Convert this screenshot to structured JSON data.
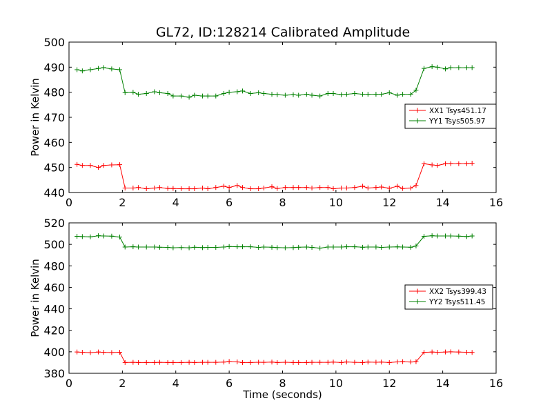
{
  "figure": {
    "title": "GL72, ID:128214 Calibrated Amplitude"
  },
  "chart_data": [
    {
      "type": "line",
      "title": "GL72, ID:128214 Calibrated Amplitude",
      "xlabel": "",
      "ylabel": "Power in Kelvin",
      "xlim": [
        0,
        16
      ],
      "ylim": [
        440,
        500
      ],
      "xticks": [
        0,
        2,
        4,
        6,
        8,
        10,
        12,
        14,
        16
      ],
      "yticks": [
        440,
        450,
        460,
        470,
        480,
        490,
        500
      ],
      "grid": false,
      "legend_position": "right",
      "x": [
        0.3,
        0.5,
        0.8,
        1.1,
        1.3,
        1.6,
        1.9,
        2.1,
        2.4,
        2.6,
        2.9,
        3.2,
        3.4,
        3.7,
        3.9,
        4.2,
        4.5,
        4.7,
        5.0,
        5.2,
        5.5,
        5.8,
        6.0,
        6.3,
        6.5,
        6.8,
        7.1,
        7.3,
        7.6,
        7.8,
        8.1,
        8.4,
        8.6,
        8.9,
        9.1,
        9.4,
        9.7,
        9.9,
        10.2,
        10.4,
        10.7,
        11.0,
        11.2,
        11.5,
        11.7,
        12.0,
        12.3,
        12.5,
        12.8,
        13.0,
        13.3,
        13.6,
        13.8,
        14.1,
        14.3,
        14.6,
        14.9,
        15.1
      ],
      "series": [
        {
          "name": "XX1 Tsys451.17",
          "color": "#ff0000",
          "values": [
            451.2,
            450.8,
            450.8,
            450.0,
            450.8,
            451.0,
            451.1,
            441.8,
            441.8,
            442.0,
            441.5,
            441.8,
            442.0,
            441.6,
            441.6,
            441.5,
            441.5,
            441.5,
            441.8,
            441.5,
            442.0,
            442.5,
            442.0,
            442.8,
            442.0,
            441.5,
            441.5,
            441.8,
            442.3,
            441.6,
            442.0,
            442.0,
            442.0,
            442.0,
            441.8,
            442.0,
            442.0,
            441.5,
            441.8,
            441.8,
            442.0,
            442.5,
            441.8,
            442.0,
            442.2,
            441.7,
            442.5,
            441.6,
            441.8,
            442.8,
            451.5,
            451.0,
            450.8,
            451.5,
            451.5,
            451.5,
            451.5,
            451.7
          ]
        },
        {
          "name": "YY1 Tsys505.97",
          "color": "#008000",
          "values": [
            489.0,
            488.5,
            489.0,
            489.5,
            489.8,
            489.3,
            489.0,
            479.8,
            480.0,
            479.2,
            479.5,
            480.2,
            479.8,
            479.5,
            478.5,
            478.5,
            478.0,
            478.8,
            478.5,
            478.5,
            478.5,
            479.5,
            480.0,
            480.2,
            480.5,
            479.5,
            479.8,
            479.5,
            479.2,
            479.0,
            478.8,
            479.0,
            478.8,
            479.2,
            478.8,
            478.5,
            479.5,
            479.5,
            479.0,
            479.2,
            479.5,
            479.2,
            479.2,
            479.2,
            479.2,
            479.8,
            478.8,
            479.2,
            479.2,
            480.8,
            489.5,
            490.2,
            490.0,
            489.3,
            489.8,
            489.8,
            489.8,
            489.8
          ]
        }
      ]
    },
    {
      "type": "line",
      "title": "",
      "xlabel": "Time (seconds)",
      "ylabel": "Power in Kelvin",
      "xlim": [
        0,
        16
      ],
      "ylim": [
        380,
        520
      ],
      "xticks": [
        0,
        2,
        4,
        6,
        8,
        10,
        12,
        14,
        16
      ],
      "yticks": [
        380,
        400,
        420,
        440,
        460,
        480,
        500,
        520
      ],
      "grid": false,
      "legend_position": "right",
      "x": [
        0.3,
        0.5,
        0.8,
        1.1,
        1.3,
        1.6,
        1.9,
        2.1,
        2.4,
        2.6,
        2.9,
        3.2,
        3.4,
        3.7,
        3.9,
        4.2,
        4.5,
        4.7,
        5.0,
        5.2,
        5.5,
        5.8,
        6.0,
        6.3,
        6.5,
        6.8,
        7.1,
        7.3,
        7.6,
        7.8,
        8.1,
        8.4,
        8.6,
        8.9,
        9.1,
        9.4,
        9.7,
        9.9,
        10.2,
        10.4,
        10.7,
        11.0,
        11.2,
        11.5,
        11.7,
        12.0,
        12.3,
        12.5,
        12.8,
        13.0,
        13.3,
        13.6,
        13.8,
        14.1,
        14.3,
        14.6,
        14.9,
        15.1
      ],
      "series": [
        {
          "name": "XX2 Tsys399.43",
          "color": "#ff0000",
          "values": [
            399.8,
            399.6,
            399.2,
            399.8,
            399.5,
            399.3,
            399.6,
            390.0,
            390.2,
            390.0,
            390.0,
            390.0,
            390.2,
            390.0,
            390.0,
            390.0,
            390.2,
            390.0,
            390.2,
            390.2,
            390.2,
            390.4,
            391.0,
            390.6,
            390.0,
            390.0,
            390.3,
            390.2,
            390.4,
            390.0,
            390.3,
            390.0,
            390.0,
            390.0,
            390.2,
            390.2,
            390.2,
            390.4,
            390.0,
            390.5,
            390.2,
            390.0,
            390.4,
            390.3,
            390.4,
            390.0,
            390.6,
            390.8,
            390.5,
            390.8,
            399.5,
            399.8,
            399.6,
            399.8,
            400.0,
            399.8,
            399.6,
            399.4
          ]
        },
        {
          "name": "YY2 Tsys511.45",
          "color": "#008000",
          "values": [
            507.5,
            507.2,
            507.0,
            508.0,
            507.8,
            507.6,
            506.8,
            497.5,
            497.8,
            497.5,
            497.5,
            497.5,
            497.3,
            497.2,
            496.8,
            497.0,
            496.8,
            497.3,
            497.0,
            497.2,
            497.2,
            497.5,
            498.0,
            497.8,
            497.8,
            497.8,
            497.2,
            497.5,
            497.3,
            497.0,
            496.8,
            497.0,
            497.3,
            497.5,
            497.2,
            496.5,
            497.5,
            497.5,
            497.5,
            497.8,
            497.8,
            497.3,
            497.5,
            497.5,
            497.2,
            497.5,
            497.7,
            497.5,
            497.3,
            498.5,
            507.5,
            508.0,
            507.8,
            507.8,
            507.8,
            507.6,
            507.2,
            507.8
          ]
        }
      ]
    }
  ]
}
